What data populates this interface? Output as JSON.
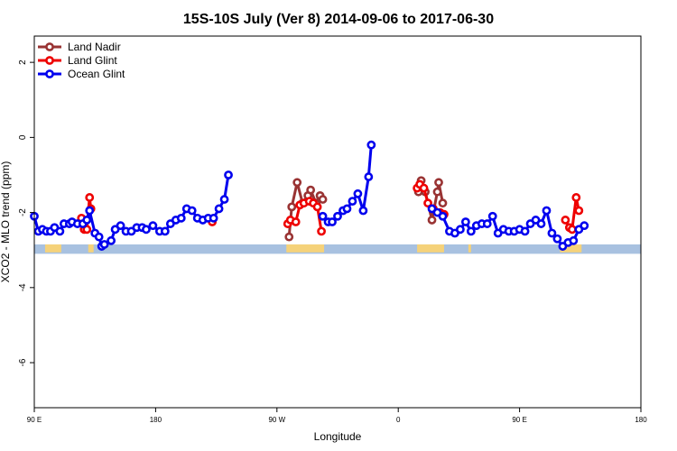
{
  "chart_data": {
    "type": "line",
    "title": "15S-10S July (Ver 8)   2014-09-06 to 2017-06-30",
    "xlabel": "Longitude",
    "ylabel": "XCO2 - MLO trend (ppm)",
    "xlim": [
      90,
      450
    ],
    "ylim": [
      -7.2,
      2.7
    ],
    "xticks": [
      {
        "value": 90,
        "label": "90 E"
      },
      {
        "value": 180,
        "label": "180"
      },
      {
        "value": 270,
        "label": "90 W"
      },
      {
        "value": 360,
        "label": "0"
      },
      {
        "value": 450,
        "label": "90 E"
      },
      {
        "value": 540,
        "label": "180"
      }
    ],
    "x_display_range": [
      90,
      540
    ],
    "yticks": [
      {
        "value": 2,
        "label": "2"
      },
      {
        "value": 0,
        "label": "0"
      },
      {
        "value": -2,
        "label": "-2"
      },
      {
        "value": -4,
        "label": "-4"
      },
      {
        "value": -6,
        "label": "-6"
      }
    ],
    "legend_position": "top-left",
    "band": {
      "y_top": -2.85,
      "y_bottom": -3.1,
      "color": "#a8c1e0",
      "land_color": "#f5d27a"
    },
    "series": [
      {
        "name": "Land Nadir",
        "color": "#993333",
        "segments": [
          [
            [
              279,
              -2.65
            ],
            [
              281,
              -1.85
            ],
            [
              285,
              -1.2
            ],
            [
              289,
              -1.75
            ],
            [
              293,
              -1.55
            ],
            [
              295,
              -1.4
            ],
            [
              299,
              -1.75
            ],
            [
              302,
              -1.55
            ],
            [
              304,
              -1.65
            ]
          ],
          [
            [
              375,
              -1.45
            ],
            [
              377,
              -1.15
            ],
            [
              380,
              -1.45
            ],
            [
              385,
              -2.2
            ],
            [
              389,
              -1.45
            ],
            [
              390,
              -1.2
            ],
            [
              393,
              -1.75
            ]
          ]
        ]
      },
      {
        "name": "Land Glint",
        "color": "#ee0000",
        "segments": [
          [
            [
              125,
              -2.15
            ],
            [
              127,
              -2.45
            ],
            [
              129,
              -2.45
            ],
            [
              131,
              -1.6
            ],
            [
              132,
              -1.9
            ]
          ],
          [
            [
              222,
              -2.25
            ]
          ],
          [
            [
              278,
              -2.3
            ],
            [
              280,
              -2.2
            ],
            [
              284,
              -2.25
            ],
            [
              287,
              -1.8
            ],
            [
              290,
              -1.75
            ],
            [
              294,
              -1.7
            ],
            [
              297,
              -1.75
            ],
            [
              300,
              -1.85
            ],
            [
              303,
              -2.5
            ]
          ],
          [
            [
              374,
              -1.35
            ],
            [
              376,
              -1.25
            ],
            [
              379,
              -1.35
            ],
            [
              382,
              -1.75
            ],
            [
              386,
              -1.9
            ],
            [
              391,
              -2.0
            ],
            [
              394,
              -2.05
            ]
          ],
          [
            [
              484,
              -2.2
            ],
            [
              487,
              -2.4
            ],
            [
              489,
              -2.45
            ],
            [
              492,
              -1.6
            ],
            [
              494,
              -1.95
            ]
          ]
        ]
      },
      {
        "name": "Ocean Glint",
        "color": "#0000ee",
        "segments": [
          [
            [
              90,
              -2.1
            ],
            [
              93,
              -2.5
            ],
            [
              96,
              -2.45
            ],
            [
              99,
              -2.5
            ],
            [
              102,
              -2.5
            ],
            [
              105,
              -2.4
            ],
            [
              109,
              -2.5
            ],
            [
              112,
              -2.3
            ],
            [
              116,
              -2.3
            ],
            [
              118,
              -2.25
            ],
            [
              122,
              -2.3
            ],
            [
              126,
              -2.3
            ],
            [
              129,
              -2.2
            ],
            [
              131,
              -1.95
            ],
            [
              135,
              -2.55
            ],
            [
              138,
              -2.65
            ],
            [
              140,
              -2.9
            ],
            [
              142,
              -2.85
            ],
            [
              147,
              -2.75
            ],
            [
              150,
              -2.45
            ],
            [
              154,
              -2.35
            ],
            [
              158,
              -2.5
            ],
            [
              162,
              -2.5
            ],
            [
              166,
              -2.4
            ],
            [
              170,
              -2.4
            ],
            [
              173,
              -2.45
            ],
            [
              178,
              -2.35
            ],
            [
              183,
              -2.5
            ],
            [
              187,
              -2.5
            ],
            [
              191,
              -2.3
            ],
            [
              195,
              -2.2
            ],
            [
              199,
              -2.15
            ],
            [
              203,
              -1.9
            ],
            [
              207,
              -1.95
            ],
            [
              211,
              -2.15
            ],
            [
              215,
              -2.2
            ],
            [
              219,
              -2.15
            ],
            [
              223,
              -2.15
            ],
            [
              227,
              -1.9
            ],
            [
              231,
              -1.65
            ],
            [
              234,
              -1.0
            ]
          ],
          [
            [
              304,
              -2.1
            ],
            [
              308,
              -2.25
            ],
            [
              311,
              -2.25
            ],
            [
              315,
              -2.1
            ],
            [
              319,
              -1.95
            ],
            [
              322,
              -1.9
            ],
            [
              326,
              -1.7
            ],
            [
              330,
              -1.5
            ],
            [
              334,
              -1.95
            ],
            [
              338,
              -1.05
            ],
            [
              340,
              -0.2
            ]
          ],
          [
            [
              385,
              -1.9
            ],
            [
              389,
              -2.0
            ],
            [
              393,
              -2.1
            ],
            [
              398,
              -2.5
            ],
            [
              402,
              -2.55
            ],
            [
              406,
              -2.45
            ],
            [
              410,
              -2.25
            ],
            [
              414,
              -2.5
            ],
            [
              418,
              -2.35
            ],
            [
              422,
              -2.3
            ],
            [
              426,
              -2.3
            ],
            [
              430,
              -2.1
            ],
            [
              434,
              -2.55
            ],
            [
              438,
              -2.45
            ],
            [
              442,
              -2.5
            ],
            [
              446,
              -2.5
            ],
            [
              450,
              -2.45
            ],
            [
              454,
              -2.5
            ],
            [
              458,
              -2.3
            ],
            [
              462,
              -2.2
            ],
            [
              466,
              -2.3
            ],
            [
              470,
              -1.95
            ],
            [
              474,
              -2.55
            ],
            [
              478,
              -2.7
            ],
            [
              482,
              -2.9
            ],
            [
              486,
              -2.8
            ],
            [
              490,
              -2.75
            ],
            [
              494,
              -2.45
            ],
            [
              498,
              -2.35
            ]
          ]
        ]
      }
    ]
  }
}
